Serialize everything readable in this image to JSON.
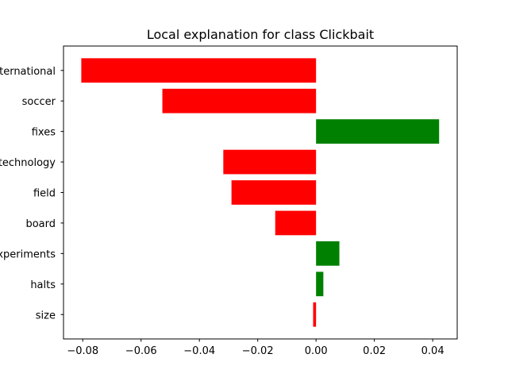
{
  "chart_data": {
    "type": "bar",
    "orientation": "horizontal",
    "title": "Local explanation for class Clickbait",
    "xlabel": "",
    "ylabel": "",
    "categories": [
      "international",
      "soccer",
      "fixes",
      "technology",
      "field",
      "board",
      "experiments",
      "halts",
      "size"
    ],
    "values": [
      -0.0805,
      -0.0527,
      0.0422,
      -0.0318,
      -0.029,
      -0.014,
      0.008,
      0.0025,
      -0.001
    ],
    "xlim": [
      -0.0866,
      0.0484
    ],
    "xticks": [
      -0.08,
      -0.06,
      -0.04,
      -0.02,
      0.0,
      0.02,
      0.04
    ],
    "xtick_labels": [
      "−0.08",
      "−0.06",
      "−0.04",
      "−0.02",
      "0.00",
      "0.02",
      "0.04"
    ],
    "grid": false,
    "colors": {
      "positive": "#008000",
      "negative": "#ff0000",
      "axis": "#000000"
    }
  }
}
